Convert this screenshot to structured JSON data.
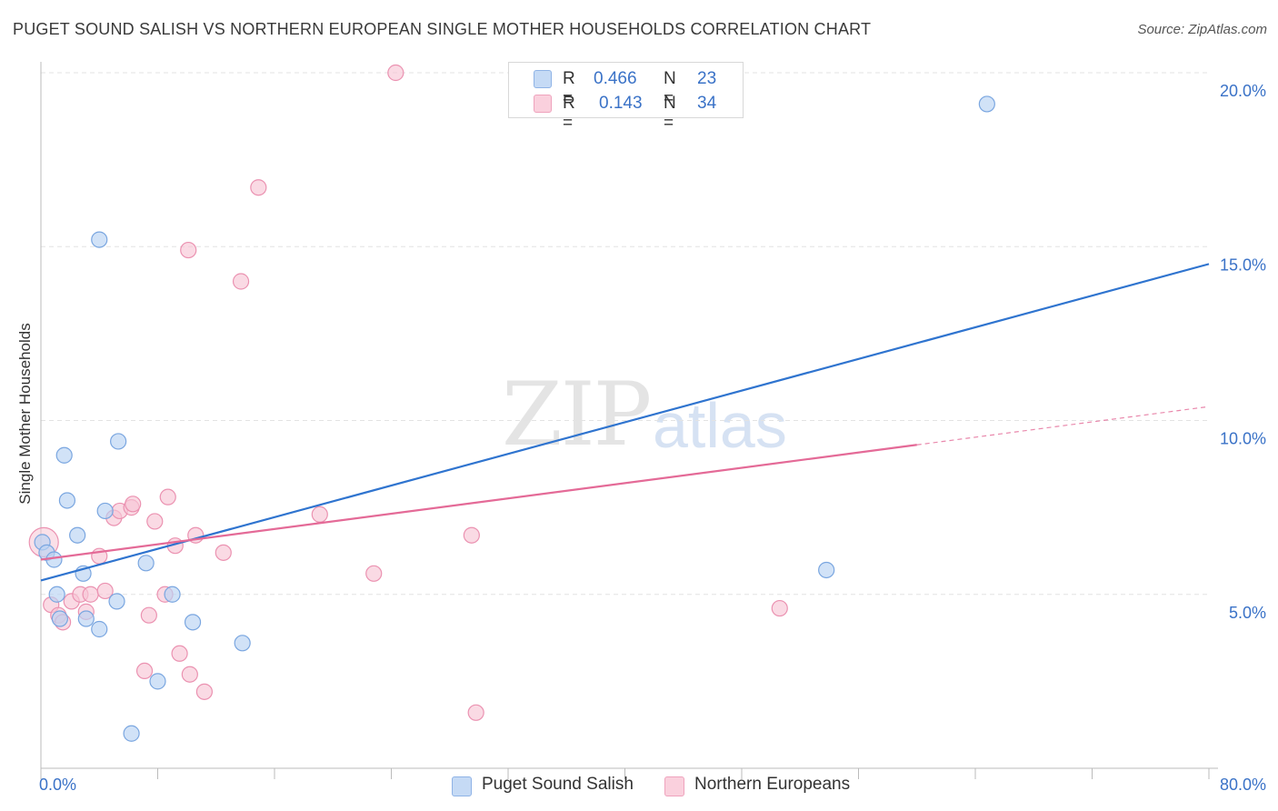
{
  "title": "PUGET SOUND SALISH VS NORTHERN EUROPEAN SINGLE MOTHER HOUSEHOLDS CORRELATION CHART",
  "source": "Source: ZipAtlas.com",
  "watermark": {
    "zip": "ZIP",
    "atlas": "atlas"
  },
  "legend": {
    "rows": [
      {
        "r_label": "R =",
        "r_value": "0.466",
        "n_label": "N =",
        "n_value": "23",
        "color": "#a9c8f2"
      },
      {
        "r_label": "R =",
        "r_value": "0.143",
        "n_label": "N =",
        "n_value": "34",
        "color": "#f6b8cb"
      }
    ]
  },
  "bottom_legend": [
    {
      "label": "Puget Sound Salish",
      "color": "#a9c8f2"
    },
    {
      "label": "Northern Europeans",
      "color": "#f6b8cb"
    }
  ],
  "colors": {
    "blue_line": "#2f74cf",
    "pink_line": "#e46a97",
    "blue_fill": "#b9d2f3",
    "blue_stroke": "#7aa6e0",
    "pink_fill": "#f8c6d5",
    "pink_stroke": "#eb92b1",
    "grid": "#e3e3e3",
    "tick_label": "#3a72c7"
  },
  "chart_data": {
    "type": "scatter",
    "title": "PUGET SOUND SALISH VS NORTHERN EUROPEAN SINGLE MOTHER HOUSEHOLDS CORRELATION CHART",
    "xlabel": "",
    "ylabel": "Single Mother Households",
    "xlim": [
      0,
      80
    ],
    "ylim": [
      0,
      20
    ],
    "x_tick_labels": [
      "0.0%",
      "80.0%"
    ],
    "y_ticks": [
      5,
      10,
      15,
      20
    ],
    "y_tick_labels": [
      "5.0%",
      "10.0%",
      "15.0%",
      "20.0%"
    ],
    "series": [
      {
        "name": "Puget Sound Salish",
        "r": 0.466,
        "n": 23,
        "points": [
          [
            0.1,
            6.5
          ],
          [
            0.4,
            6.2
          ],
          [
            0.9,
            6.0
          ],
          [
            1.1,
            5.0
          ],
          [
            1.3,
            4.3
          ],
          [
            1.6,
            9.0
          ],
          [
            1.8,
            7.7
          ],
          [
            2.5,
            6.7
          ],
          [
            2.9,
            5.6
          ],
          [
            3.1,
            4.3
          ],
          [
            4.0,
            4.0
          ],
          [
            4.4,
            7.4
          ],
          [
            5.2,
            4.8
          ],
          [
            5.3,
            9.4
          ],
          [
            4.0,
            15.2
          ],
          [
            6.2,
            1.0
          ],
          [
            7.2,
            5.9
          ],
          [
            8.0,
            2.5
          ],
          [
            9.0,
            5.0
          ],
          [
            10.4,
            4.2
          ],
          [
            13.8,
            3.6
          ],
          [
            53.8,
            5.7
          ],
          [
            64.8,
            19.1
          ]
        ],
        "trend": {
          "x": [
            0,
            80
          ],
          "y": [
            5.4,
            14.5
          ],
          "solid_to": 80
        }
      },
      {
        "name": "Northern Europeans",
        "r": 0.143,
        "n": 34,
        "points": [
          [
            0.2,
            6.5
          ],
          [
            0.7,
            4.7
          ],
          [
            1.2,
            4.4
          ],
          [
            1.5,
            4.2
          ],
          [
            2.1,
            4.8
          ],
          [
            2.7,
            5.0
          ],
          [
            3.1,
            4.5
          ],
          [
            3.4,
            5.0
          ],
          [
            4.0,
            6.1
          ],
          [
            4.4,
            5.1
          ],
          [
            5.0,
            7.2
          ],
          [
            5.4,
            7.4
          ],
          [
            6.2,
            7.5
          ],
          [
            6.3,
            7.6
          ],
          [
            7.1,
            2.8
          ],
          [
            7.4,
            4.4
          ],
          [
            7.8,
            7.1
          ],
          [
            8.5,
            5.0
          ],
          [
            8.7,
            7.8
          ],
          [
            9.2,
            6.4
          ],
          [
            9.5,
            3.3
          ],
          [
            10.2,
            2.7
          ],
          [
            10.6,
            6.7
          ],
          [
            11.2,
            2.2
          ],
          [
            12.5,
            6.2
          ],
          [
            13.7,
            14.0
          ],
          [
            14.9,
            16.7
          ],
          [
            10.1,
            14.9
          ],
          [
            19.1,
            7.3
          ],
          [
            22.8,
            5.6
          ],
          [
            24.3,
            20.0
          ],
          [
            29.5,
            6.7
          ],
          [
            29.8,
            1.6
          ],
          [
            50.6,
            4.6
          ]
        ],
        "trend": {
          "x": [
            0,
            80
          ],
          "y": [
            6.0,
            10.4
          ],
          "solid_to": 60
        }
      }
    ]
  }
}
